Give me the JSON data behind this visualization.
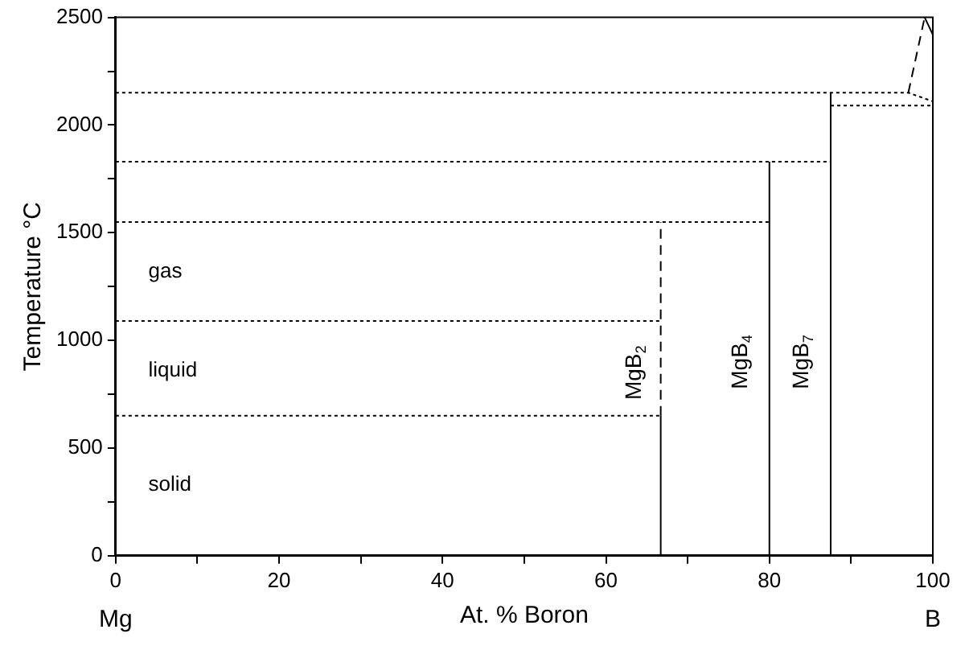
{
  "chart_data": {
    "type": "line",
    "xlabel": "At. % Boron",
    "ylabel": "Temperature °C",
    "xlim": [
      0,
      100
    ],
    "ylim": [
      0,
      2500
    ],
    "xticks": [
      0,
      {
        "value": 10,
        "label": null
      },
      20,
      {
        "value": 30,
        "label": null
      },
      40,
      {
        "value": 50,
        "label": null
      },
      60,
      {
        "value": 70,
        "label": null
      },
      80,
      {
        "value": 90,
        "label": null
      },
      100
    ],
    "yticks": [
      0,
      {
        "value": 250,
        "label": null
      },
      500,
      {
        "value": 750,
        "label": null
      },
      1000,
      {
        "value": 1250,
        "label": null
      },
      1500,
      {
        "value": 1750,
        "label": null
      },
      2000,
      {
        "value": 2250,
        "label": null
      },
      2500
    ],
    "grid": false,
    "legend": false,
    "marker": "none",
    "series": [
      {
        "color": "#000000",
        "line_style": "dotted",
        "x": [
          0,
          66.7
        ],
        "values": [
          650,
          650
        ]
      },
      {
        "color": "#000000",
        "line_style": "dotted",
        "x": [
          0,
          66.7
        ],
        "values": [
          1090,
          1090
        ]
      },
      {
        "color": "#000000",
        "line_style": "dotted",
        "x": [
          0,
          80
        ],
        "values": [
          1550,
          1550
        ]
      },
      {
        "color": "#000000",
        "line_style": "dotted",
        "x": [
          0,
          87.5
        ],
        "values": [
          1830,
          1830
        ]
      },
      {
        "color": "#000000",
        "line_style": "dotted",
        "x": [
          0,
          97,
          100
        ],
        "values": [
          2150,
          2150,
          2110
        ]
      },
      {
        "color": "#000000",
        "line_style": "solid",
        "x": [
          66.7,
          66.7
        ],
        "values": [
          0,
          650
        ]
      },
      {
        "color": "#000000",
        "line_style": "dashed",
        "x": [
          66.7,
          66.7
        ],
        "values": [
          650,
          1550
        ]
      },
      {
        "color": "#000000",
        "line_style": "solid",
        "x": [
          80,
          80
        ],
        "values": [
          0,
          1830
        ]
      },
      {
        "color": "#000000",
        "line_style": "solid",
        "x": [
          87.5,
          87.5
        ],
        "values": [
          0,
          2150
        ]
      },
      {
        "color": "#000000",
        "line_style": "dotted",
        "x": [
          87.5,
          100
        ],
        "values": [
          2090,
          2090
        ]
      },
      {
        "color": "#000000",
        "line_style": "dashed",
        "x": [
          97,
          99
        ],
        "values": [
          2150,
          2500
        ]
      },
      {
        "color": "#000000",
        "line_style": "solid",
        "x": [
          99,
          100
        ],
        "values": [
          2500,
          2420
        ]
      }
    ],
    "annotations": [
      "gas",
      "liquid",
      "solid",
      "MgB$_{2}$",
      "MgB$_{4}$",
      "MgB$_{7}$",
      "Mg",
      "B"
    ]
  }
}
